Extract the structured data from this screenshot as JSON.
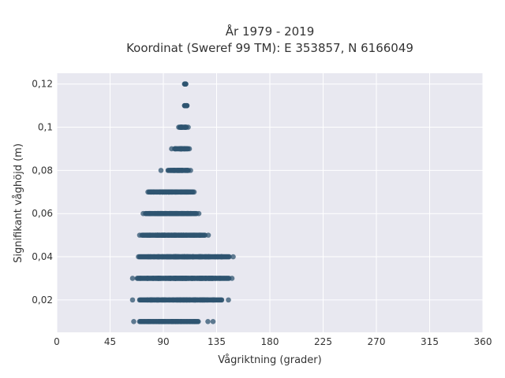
{
  "chart_data": {
    "type": "scatter",
    "title_line1": "År 1979 - 2019",
    "title_line2": "Koordinat (Sweref 99 TM): E 353857, N 6166049",
    "xlabel": "Vågriktning (grader)",
    "ylabel": "Signifikant våghöjd (m)",
    "xlim": [
      0,
      360
    ],
    "ylim": [
      0.005,
      0.125
    ],
    "x_ticks": [
      0,
      45,
      90,
      135,
      180,
      225,
      270,
      315,
      360
    ],
    "x_tick_labels": [
      "0",
      "45",
      "90",
      "135",
      "180",
      "225",
      "270",
      "315",
      "360"
    ],
    "y_ticks": [
      0.02,
      0.04,
      0.06,
      0.08,
      0.1,
      0.12
    ],
    "y_tick_labels": [
      "0,02",
      "0,04",
      "0,06",
      "0,08",
      "0,1",
      "0,12"
    ],
    "grid": true,
    "colors": {
      "point": "#2f5470",
      "plot_bg": "#e8e8f0",
      "grid": "#ffffff"
    },
    "bands": [
      {
        "y": 0.01,
        "x_min": 65,
        "x_max": 132,
        "dense_min": 70,
        "dense_max": 120,
        "count": 14
      },
      {
        "y": 0.02,
        "x_min": 64,
        "x_max": 145,
        "dense_min": 70,
        "dense_max": 140,
        "count": 60
      },
      {
        "y": 0.03,
        "x_min": 64,
        "x_max": 148,
        "dense_min": 68,
        "dense_max": 146,
        "count": 70
      },
      {
        "y": 0.04,
        "x_min": 69,
        "x_max": 149,
        "dense_min": 70,
        "dense_max": 146,
        "count": 70
      },
      {
        "y": 0.05,
        "x_min": 70,
        "x_max": 128,
        "dense_min": 72,
        "dense_max": 126,
        "count": 55
      },
      {
        "y": 0.06,
        "x_min": 73,
        "x_max": 120,
        "dense_min": 75,
        "dense_max": 118,
        "count": 45
      },
      {
        "y": 0.07,
        "x_min": 77,
        "x_max": 116,
        "dense_min": 78,
        "dense_max": 115,
        "count": 38
      },
      {
        "y": 0.08,
        "x_min": 88,
        "x_max": 113,
        "dense_min": 94,
        "dense_max": 112,
        "count": 22
      },
      {
        "y": 0.09,
        "x_min": 97,
        "x_max": 112,
        "dense_min": 100,
        "dense_max": 111,
        "count": 14
      },
      {
        "y": 0.1,
        "x_min": 103,
        "x_max": 111,
        "dense_min": 104,
        "dense_max": 110,
        "count": 8
      },
      {
        "y": 0.11,
        "x_min": 108,
        "x_max": 110,
        "dense_min": 108,
        "dense_max": 110,
        "count": 2
      },
      {
        "y": 0.12,
        "x_min": 108,
        "x_max": 109,
        "dense_min": 108,
        "dense_max": 109,
        "count": 1
      }
    ]
  }
}
